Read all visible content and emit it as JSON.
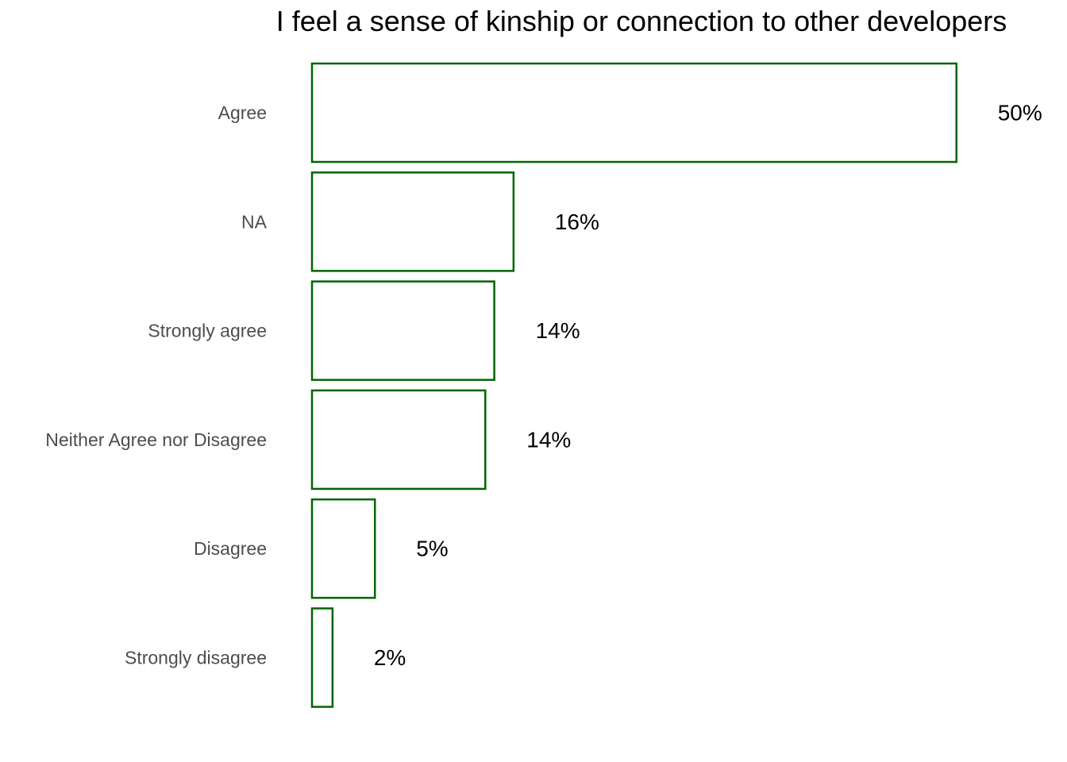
{
  "chart_data": {
    "type": "bar",
    "orientation": "horizontal",
    "title": "I feel a sense of kinship or connection to other developers",
    "xlabel": "",
    "ylabel": "",
    "grid": false,
    "legend": "none",
    "bar_color": "#006400",
    "bar_fill": "#ffffff",
    "xlim": [
      0,
      52
    ],
    "categories": [
      "Agree",
      "NA",
      "Strongly agree",
      "Neither Agree nor Disagree",
      "Disagree",
      "Strongly disagree"
    ],
    "values": [
      50.2,
      15.7,
      14.2,
      13.5,
      4.9,
      1.6
    ],
    "data_labels": [
      "50%",
      "16%",
      "14%",
      "14%",
      "5%",
      "2%"
    ]
  }
}
